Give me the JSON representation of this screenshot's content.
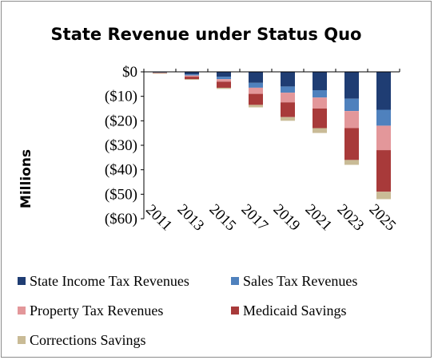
{
  "chart_data": {
    "type": "bar",
    "stacked": true,
    "title": "State Revenue under Status Quo",
    "xlabel": "",
    "ylabel": "Millions",
    "ylim": [
      -60,
      0
    ],
    "y_ticks": [
      0,
      -10,
      -20,
      -30,
      -40,
      -50,
      -60
    ],
    "y_tick_labels": [
      "$0",
      "($10)",
      "($20)",
      "($30)",
      "($40)",
      "($50)",
      "($60)"
    ],
    "categories": [
      "2011",
      "2013",
      "2015",
      "2017",
      "2019",
      "2021",
      "2023",
      "2025"
    ],
    "grid": false,
    "legend_position": "bottom",
    "series": [
      {
        "name": "State Income Tax Revenues",
        "color": "#1f3d73",
        "values": [
          -0.2,
          -1,
          -2,
          -4.5,
          -6,
          -7.5,
          -11,
          -15.5
        ]
      },
      {
        "name": "Sales Tax Revenues",
        "color": "#4f81bd",
        "values": [
          -0.1,
          -0.5,
          -1,
          -2,
          -2.5,
          -3,
          -5,
          -6.5
        ]
      },
      {
        "name": "Property Tax Revenues",
        "color": "#e3979a",
        "values": [
          -0.1,
          -0.5,
          -1,
          -2.5,
          -4,
          -4.5,
          -7,
          -10
        ]
      },
      {
        "name": "Medicaid Savings",
        "color": "#a83a3a",
        "values": [
          -0.1,
          -1,
          -2.5,
          -4.5,
          -6,
          -8,
          -13,
          -17
        ]
      },
      {
        "name": "Corrections Savings",
        "color": "#c9bb96",
        "values": [
          -0.1,
          -0.2,
          -0.5,
          -1,
          -1.5,
          -2,
          -2,
          -3
        ]
      }
    ]
  }
}
